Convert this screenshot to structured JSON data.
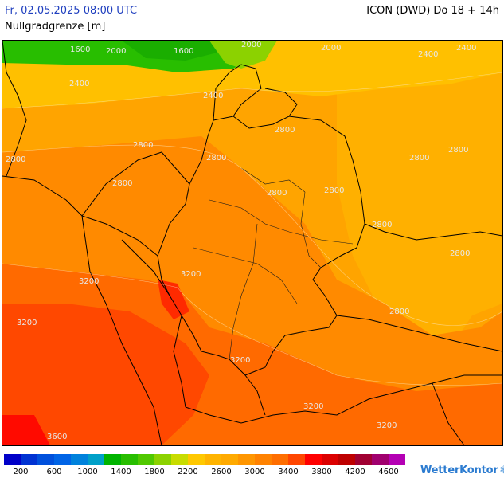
{
  "header": {
    "datetime": "Fr, 02.05.2025 08:00 UTC",
    "variable": "Nullgradgrenze [m]",
    "model": "ICON (DWD) Do 18 + 14h"
  },
  "map": {
    "contour_labels": [
      "1600",
      "2000",
      "1600",
      "2000",
      "2000",
      "2400",
      "2400",
      "2400",
      "2400",
      "2800",
      "2800",
      "2800",
      "2800",
      "2800",
      "2800",
      "2800",
      "2800",
      "2800",
      "2800",
      "3200",
      "3200",
      "3200",
      "3200",
      "3200",
      "3600",
      "3200"
    ]
  },
  "colorbar": {
    "colors": [
      "#0000c8",
      "#0032d2",
      "#0050dc",
      "#0064e6",
      "#0082dc",
      "#00a0c8",
      "#00b400",
      "#28be00",
      "#50c800",
      "#8cd200",
      "#c8dc00",
      "#ffc800",
      "#ffb400",
      "#ffaa00",
      "#ff9600",
      "#ff8200",
      "#ff6e00",
      "#ff4600",
      "#ff0000",
      "#dc0000",
      "#be0000",
      "#a00032",
      "#a0006e",
      "#b400b4"
    ],
    "tick_labels": [
      "200",
      "600",
      "1000",
      "1400",
      "1800",
      "2200",
      "2600",
      "3000",
      "3400",
      "3800",
      "4200",
      "4600"
    ]
  },
  "logo": {
    "name": "WetterKontor",
    "deco": "❃"
  }
}
